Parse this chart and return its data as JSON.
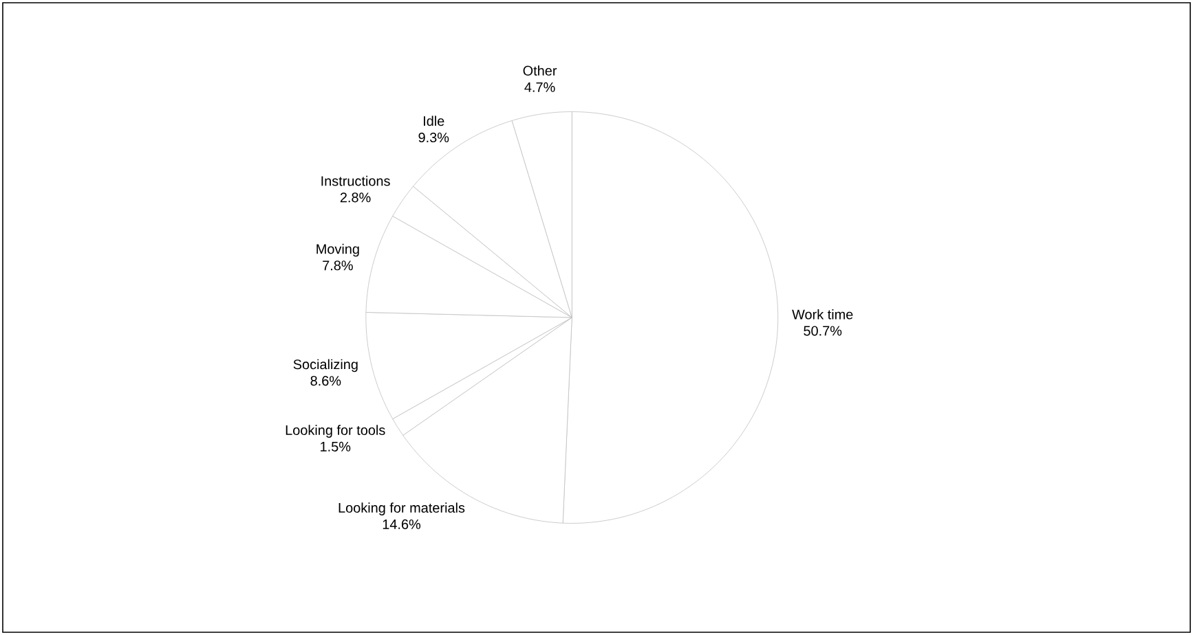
{
  "chart_data": {
    "type": "pie",
    "categories": [
      "Work time",
      "Looking for materials",
      "Looking for tools",
      "Socializing",
      "Moving",
      "Instructions",
      "Idle",
      "Other"
    ],
    "values": [
      50.7,
      14.6,
      1.5,
      8.6,
      7.8,
      2.8,
      9.3,
      4.7
    ],
    "value_labels": [
      "50.7%",
      "14.6%",
      "1.5%",
      "8.6%",
      "7.8%",
      "2.8%",
      "9.3%",
      "4.7%"
    ],
    "colors": [
      "#ffffff",
      "#ffffff",
      "#ffffff",
      "#ffffff",
      "#ffffff",
      "#ffffff",
      "#ffffff",
      "#ffffff"
    ]
  }
}
